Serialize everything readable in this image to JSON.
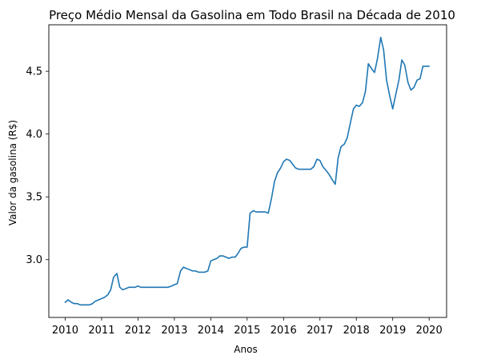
{
  "chart_data": {
    "type": "line",
    "title": "Preço Médio Mensal da Gasolina em Todo Brasil na Década de 2010",
    "xlabel": "Anos",
    "ylabel": "Valor da gasolina (R$)",
    "xlim": [
      2009.55,
      2020.48
    ],
    "ylim": [
      2.54,
      4.87
    ],
    "xticks": [
      2010,
      2011,
      2012,
      2013,
      2014,
      2015,
      2016,
      2017,
      2018,
      2019,
      2020
    ],
    "yticks": [
      3.0,
      3.5,
      4.0,
      4.5
    ],
    "ytick_labels": [
      "3.0",
      "3.5",
      "4.0",
      "4.5"
    ],
    "grid": false,
    "legend": "none",
    "series": [
      {
        "color": "#1f77b4",
        "x": [
          2010.0,
          2010.08,
          2010.17,
          2010.25,
          2010.33,
          2010.42,
          2010.5,
          2010.58,
          2010.67,
          2010.75,
          2010.83,
          2010.92,
          2011.0,
          2011.08,
          2011.17,
          2011.25,
          2011.33,
          2011.42,
          2011.5,
          2011.58,
          2011.67,
          2011.75,
          2011.83,
          2011.92,
          2012.0,
          2012.08,
          2012.17,
          2012.25,
          2012.33,
          2012.42,
          2012.5,
          2012.58,
          2012.67,
          2012.75,
          2012.83,
          2012.92,
          2013.0,
          2013.08,
          2013.17,
          2013.25,
          2013.33,
          2013.42,
          2013.5,
          2013.58,
          2013.67,
          2013.75,
          2013.83,
          2013.92,
          2014.0,
          2014.08,
          2014.17,
          2014.25,
          2014.33,
          2014.42,
          2014.5,
          2014.58,
          2014.67,
          2014.75,
          2014.83,
          2014.92,
          2015.0,
          2015.08,
          2015.17,
          2015.25,
          2015.33,
          2015.42,
          2015.5,
          2015.58,
          2015.67,
          2015.75,
          2015.83,
          2015.92,
          2016.0,
          2016.08,
          2016.17,
          2016.25,
          2016.33,
          2016.42,
          2016.5,
          2016.58,
          2016.67,
          2016.75,
          2016.83,
          2016.92,
          2017.0,
          2017.08,
          2017.17,
          2017.25,
          2017.33,
          2017.42,
          2017.5,
          2017.58,
          2017.67,
          2017.75,
          2017.83,
          2017.92,
          2018.0,
          2018.08,
          2018.17,
          2018.25,
          2018.33,
          2018.42,
          2018.5,
          2018.58,
          2018.67,
          2018.75,
          2018.83,
          2018.92,
          2019.0,
          2019.08,
          2019.17,
          2019.25,
          2019.33,
          2019.42,
          2019.5,
          2019.58,
          2019.67,
          2019.75,
          2019.83,
          2019.92,
          2020.0
        ],
        "y": [
          2.66,
          2.68,
          2.66,
          2.65,
          2.65,
          2.64,
          2.64,
          2.64,
          2.64,
          2.65,
          2.67,
          2.68,
          2.69,
          2.7,
          2.72,
          2.76,
          2.86,
          2.89,
          2.78,
          2.76,
          2.77,
          2.78,
          2.78,
          2.78,
          2.79,
          2.78,
          2.78,
          2.78,
          2.78,
          2.78,
          2.78,
          2.78,
          2.78,
          2.78,
          2.78,
          2.79,
          2.8,
          2.81,
          2.91,
          2.94,
          2.93,
          2.92,
          2.91,
          2.91,
          2.9,
          2.9,
          2.9,
          2.91,
          2.99,
          3.0,
          3.01,
          3.03,
          3.03,
          3.02,
          3.01,
          3.02,
          3.02,
          3.05,
          3.09,
          3.1,
          3.1,
          3.37,
          3.39,
          3.38,
          3.38,
          3.38,
          3.38,
          3.37,
          3.49,
          3.62,
          3.69,
          3.73,
          3.78,
          3.8,
          3.79,
          3.76,
          3.73,
          3.72,
          3.72,
          3.72,
          3.72,
          3.72,
          3.74,
          3.8,
          3.79,
          3.74,
          3.71,
          3.68,
          3.64,
          3.6,
          3.81,
          3.9,
          3.92,
          3.97,
          4.08,
          4.2,
          4.23,
          4.22,
          4.25,
          4.34,
          4.56,
          4.52,
          4.49,
          4.6,
          4.77,
          4.67,
          4.43,
          4.3,
          4.2,
          4.31,
          4.43,
          4.59,
          4.55,
          4.41,
          4.35,
          4.37,
          4.43,
          4.44,
          4.54,
          4.54,
          4.54
        ]
      }
    ]
  }
}
